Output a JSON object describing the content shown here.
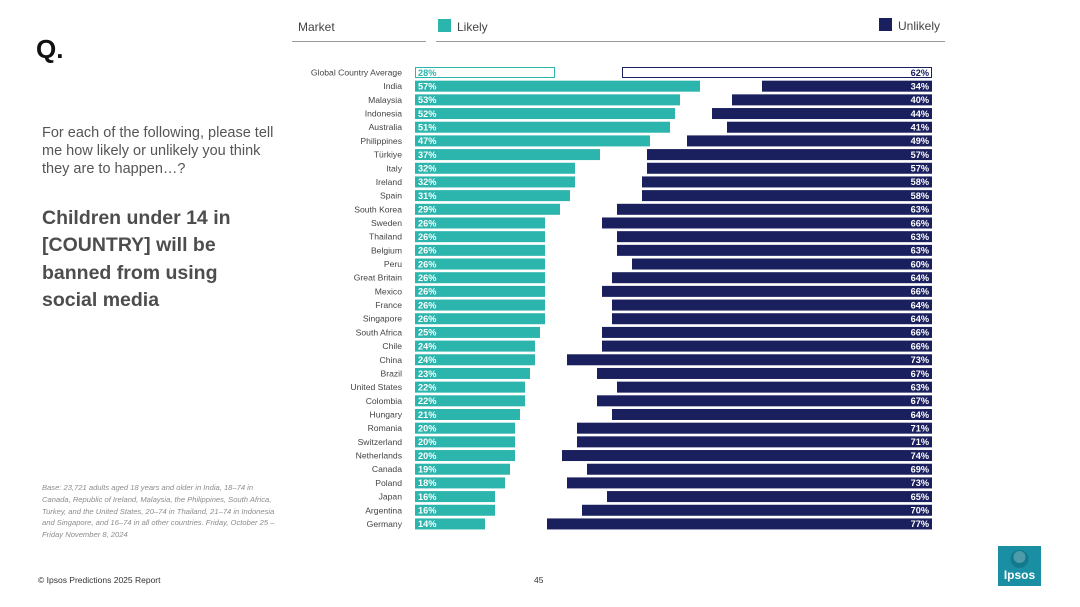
{
  "q_mark": "Q.",
  "question": "For each of the following, please tell me how likely or unlikely you think they are to happen…?",
  "headline": "Children under 14 in [COUNTRY] will be banned from using social media",
  "base_note": "Base: 23,721 adults aged 18 years and older in India, 18–74 in Canada, Republic of Ireland, Malaysia, the Philippines, South Africa, Turkey, and the United States, 20–74 in Thailand, 21–74 in Indonesia and Singapore, and 16–74 in all other countries. Friday, October 25 – Friday November 8, 2024",
  "footer": "© Ipsos Predictions 2025 Report",
  "page_number": "45",
  "logo_text": "Ipsos",
  "colors": {
    "likely": "#2bb5ac",
    "unlikely": "#1a1f5e",
    "logo": "#1a8fa3"
  },
  "chart_data": {
    "type": "bar",
    "orientation": "horizontal-diverging",
    "header": {
      "market": "Market",
      "likely": "Likely",
      "unlikely": "Unlikely"
    },
    "categories": [
      "Global Country Average",
      "India",
      "Malaysia",
      "Indonesia",
      "Australia",
      "Philippines",
      "Türkiye",
      "Italy",
      "Ireland",
      "Spain",
      "South Korea",
      "Sweden",
      "Thailand",
      "Belgium",
      "Peru",
      "Great Britain",
      "Mexico",
      "France",
      "Singapore",
      "South Africa",
      "Chile",
      "China",
      "Brazil",
      "United States",
      "Colombia",
      "Hungary",
      "Romania",
      "Switzerland",
      "Netherlands",
      "Canada",
      "Poland",
      "Japan",
      "Argentina",
      "Germany"
    ],
    "series": [
      {
        "name": "Likely",
        "values": [
          28,
          57,
          53,
          52,
          51,
          47,
          37,
          32,
          32,
          31,
          29,
          26,
          26,
          26,
          26,
          26,
          26,
          26,
          26,
          25,
          24,
          24,
          23,
          22,
          22,
          21,
          20,
          20,
          20,
          19,
          18,
          16,
          16,
          14
        ]
      },
      {
        "name": "Unlikely",
        "values": [
          62,
          34,
          40,
          44,
          41,
          49,
          57,
          57,
          58,
          58,
          63,
          66,
          63,
          63,
          60,
          64,
          66,
          64,
          64,
          66,
          66,
          73,
          67,
          63,
          67,
          64,
          71,
          71,
          74,
          69,
          73,
          65,
          70,
          77
        ]
      }
    ],
    "unit": "%"
  }
}
